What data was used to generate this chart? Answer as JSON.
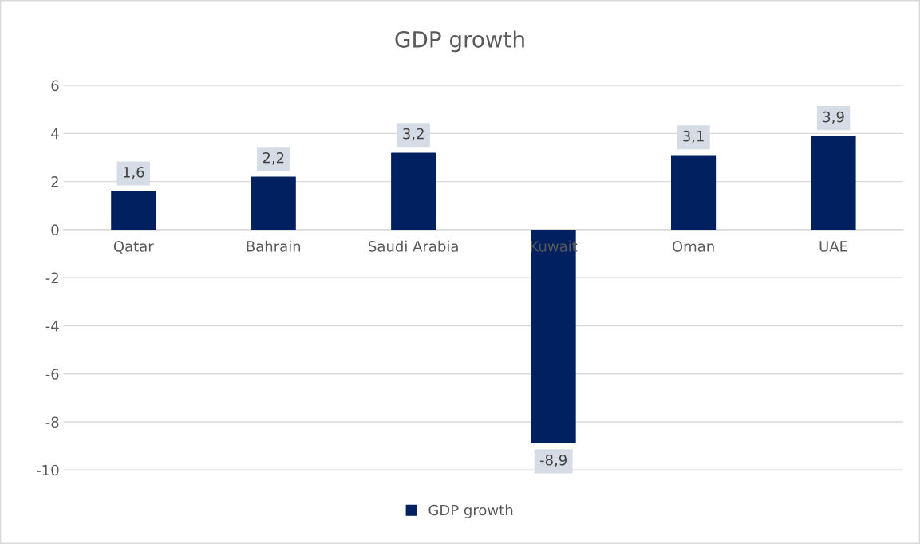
{
  "chart_data": {
    "type": "bar",
    "title": "GDP growth",
    "categories": [
      "Qatar",
      "Bahrain",
      "Saudi Arabia",
      "Kuwait",
      "Oman",
      "UAE"
    ],
    "series": [
      {
        "name": "GDP growth",
        "color": "#002060",
        "values": [
          1.6,
          2.2,
          3.2,
          -8.9,
          3.1,
          3.9
        ],
        "value_labels": [
          "1,6",
          "2,2",
          "3,2",
          "-8,9",
          "3,1",
          "3,9"
        ]
      }
    ],
    "ylim": [
      -10,
      6
    ],
    "yticks": [
      -10,
      -8,
      -6,
      -4,
      -2,
      0,
      2,
      4,
      6
    ],
    "grid": "y",
    "legend": "bottom"
  }
}
